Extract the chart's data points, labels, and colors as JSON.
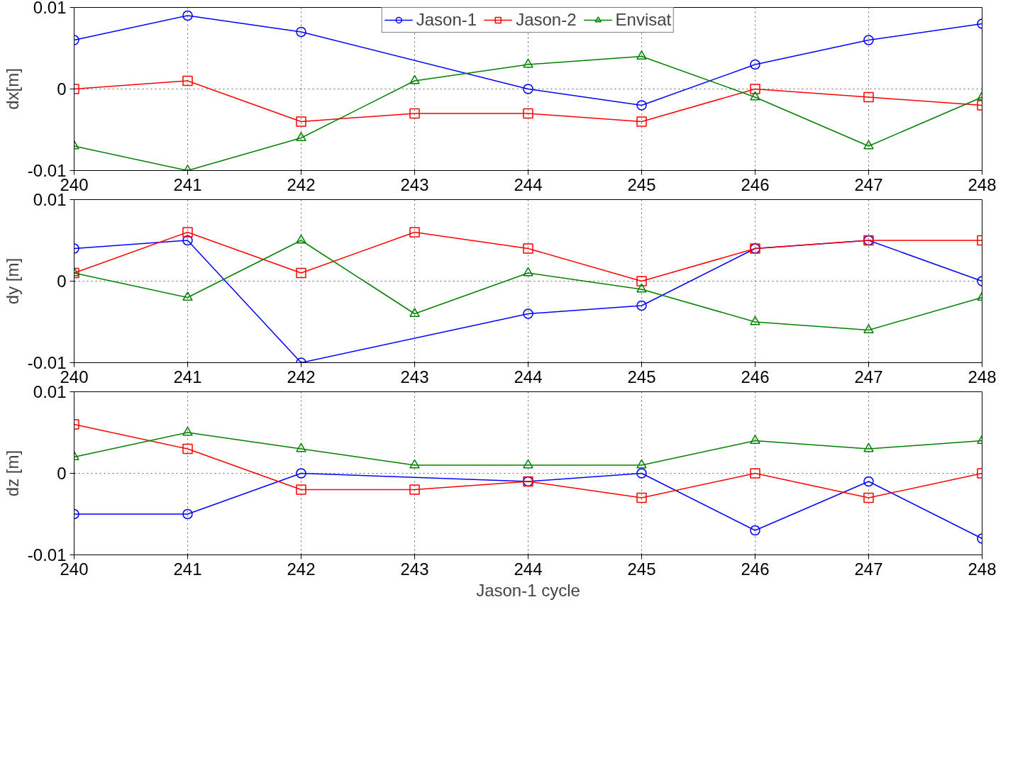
{
  "chart_data": [
    {
      "type": "line",
      "ylabel": "dx[m]",
      "xlim": [
        240,
        248
      ],
      "xticks": [
        240,
        241,
        242,
        243,
        244,
        245,
        246,
        247,
        248
      ],
      "ylim": [
        -0.01,
        0.01
      ],
      "yticks": [
        -0.01,
        0,
        0.01
      ],
      "grid": true,
      "legend": "top center",
      "line_style": "solid",
      "x": [
        240,
        241,
        242,
        243,
        244,
        245,
        246,
        247,
        248
      ],
      "series": [
        {
          "name": "Jason-1",
          "color": "#0000ff",
          "marker": "circle",
          "x": [
            240,
            241,
            242,
            244,
            245,
            246,
            247,
            248
          ],
          "values": [
            0.006,
            0.009,
            0.007,
            0,
            -0.002,
            0.003,
            0.006,
            0.008
          ]
        },
        {
          "name": "Jason-2",
          "color": "#ff0000",
          "marker": "square",
          "values": [
            0,
            0.001,
            -0.004,
            -0.003,
            -0.003,
            -0.004,
            0,
            -0.001,
            -0.002
          ]
        },
        {
          "name": "Envisat",
          "color": "#008000",
          "marker": "triangle",
          "values": [
            -0.007,
            -0.01,
            -0.006,
            0.001,
            0.003,
            0.004,
            -0.001,
            -0.007,
            -0.001
          ]
        }
      ]
    },
    {
      "type": "line",
      "ylabel": "dy [m]",
      "xlim": [
        240,
        248
      ],
      "xticks": [
        240,
        241,
        242,
        243,
        244,
        245,
        246,
        247,
        248
      ],
      "ylim": [
        -0.01,
        0.01
      ],
      "yticks": [
        -0.01,
        0,
        0.01
      ],
      "grid": true,
      "line_style": "solid",
      "x": [
        240,
        241,
        242,
        243,
        244,
        245,
        246,
        247,
        248
      ],
      "series": [
        {
          "color": "#0000ff",
          "marker": "circle",
          "x": [
            240,
            241,
            242,
            244,
            245,
            246,
            247,
            248
          ],
          "values": [
            0.004,
            0.005,
            -0.01,
            -0.004,
            -0.003,
            0.004,
            0.005,
            0
          ]
        },
        {
          "color": "#ff0000",
          "marker": "square",
          "values": [
            0.001,
            0.006,
            0.001,
            0.006,
            0.004,
            0,
            0.004,
            0.005,
            0.005
          ]
        },
        {
          "color": "#008000",
          "marker": "triangle",
          "values": [
            0.001,
            -0.002,
            0.005,
            -0.004,
            0.001,
            -0.001,
            -0.005,
            -0.006,
            -0.002
          ]
        }
      ]
    },
    {
      "type": "line",
      "ylabel": "dz [m]",
      "xlabel": "Jason-1 cycle",
      "xlim": [
        240,
        248
      ],
      "xticks": [
        240,
        241,
        242,
        243,
        244,
        245,
        246,
        247,
        248
      ],
      "ylim": [
        -0.01,
        0.01
      ],
      "yticks": [
        -0.01,
        0,
        0.01
      ],
      "grid": true,
      "line_style": "solid",
      "x": [
        240,
        241,
        242,
        243,
        244,
        245,
        246,
        247,
        248
      ],
      "series": [
        {
          "color": "#0000ff",
          "marker": "circle",
          "x": [
            240,
            241,
            242,
            244,
            245,
            246,
            247,
            248
          ],
          "values": [
            -0.005,
            -0.005,
            0,
            -0.001,
            0,
            -0.007,
            -0.001,
            -0.008
          ]
        },
        {
          "color": "#ff0000",
          "marker": "square",
          "values": [
            0.006,
            0.003,
            -0.002,
            -0.002,
            -0.001,
            -0.003,
            0,
            -0.003,
            0
          ]
        },
        {
          "color": "#008000",
          "marker": "triangle",
          "values": [
            0.002,
            0.005,
            0.003,
            0.001,
            0.001,
            0.001,
            0.004,
            0.003,
            0.004
          ]
        }
      ]
    }
  ]
}
